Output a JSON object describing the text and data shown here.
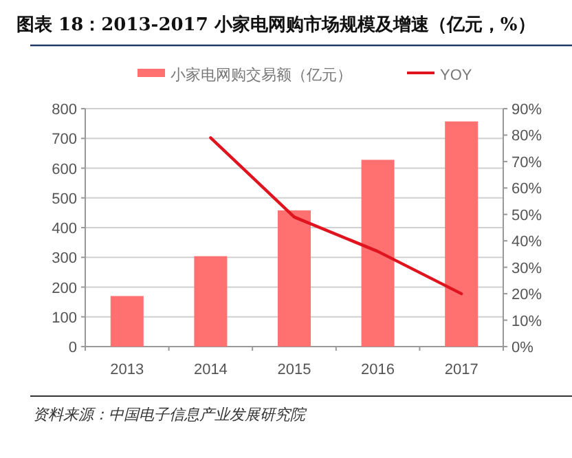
{
  "chart_data": {
    "type": "bar",
    "title": "图表 18：2013-2017 小家电网购市场规模及增速（亿元，%）",
    "categories": [
      "2013",
      "2014",
      "2015",
      "2016",
      "2017"
    ],
    "series": [
      {
        "name": "小家电网购交易额（亿元）",
        "color": "#ff7171",
        "values": [
          170,
          304,
          458,
          628,
          757
        ]
      },
      {
        "name": "YOY",
        "type": "line",
        "axis": "y2",
        "color": "#e0141e",
        "values": [
          null,
          79,
          49,
          36,
          20
        ]
      }
    ],
    "ylim": [
      0,
      800
    ],
    "yticks": [
      0,
      100,
      200,
      300,
      400,
      500,
      600,
      700,
      800
    ],
    "y2lim": [
      0,
      90
    ],
    "y2ticks": [
      {
        "value": 0,
        "label": "0%"
      },
      {
        "value": 10,
        "label": "10%"
      },
      {
        "value": 20,
        "label": "20%"
      },
      {
        "value": 30,
        "label": "30%"
      },
      {
        "value": 40,
        "label": "40%"
      },
      {
        "value": 50,
        "label": "50%"
      },
      {
        "value": 60,
        "label": "60%"
      },
      {
        "value": 70,
        "label": "70%"
      },
      {
        "value": 80,
        "label": "80%"
      },
      {
        "value": 90,
        "label": "90%"
      }
    ],
    "grid": "y",
    "legend": "top",
    "annotations": [
      "资料来源：中国电子信息产业发展研究院"
    ]
  }
}
